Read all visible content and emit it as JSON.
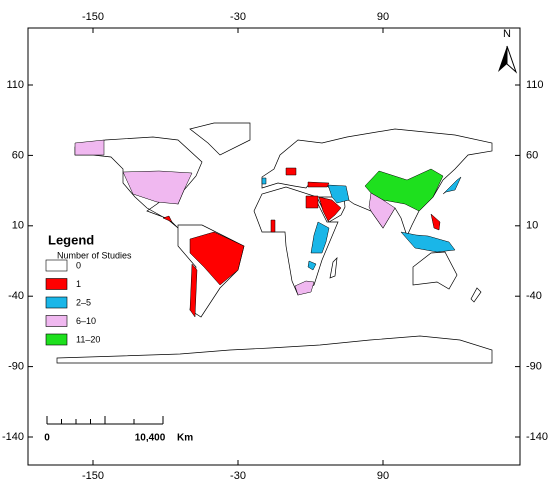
{
  "map": {
    "longitude_ticks": [
      -150,
      -30,
      90
    ],
    "latitude_ticks": [
      110,
      60,
      10,
      -40,
      -90,
      -140
    ],
    "north_label": "N",
    "legend": {
      "title": "Legend",
      "subtitle": "Number of Studies",
      "items": [
        {
          "label": "0",
          "color": "#ffffff"
        },
        {
          "label": "1",
          "color": "#ff0000"
        },
        {
          "label": "2–5",
          "color": "#1ab6e8"
        },
        {
          "label": "6–10",
          "color": "#f0b8f0"
        },
        {
          "label": "11–20",
          "color": "#1ee01e"
        }
      ]
    },
    "scale_bar": {
      "start": "0",
      "end": "10,400",
      "unit": "Km"
    }
  }
}
